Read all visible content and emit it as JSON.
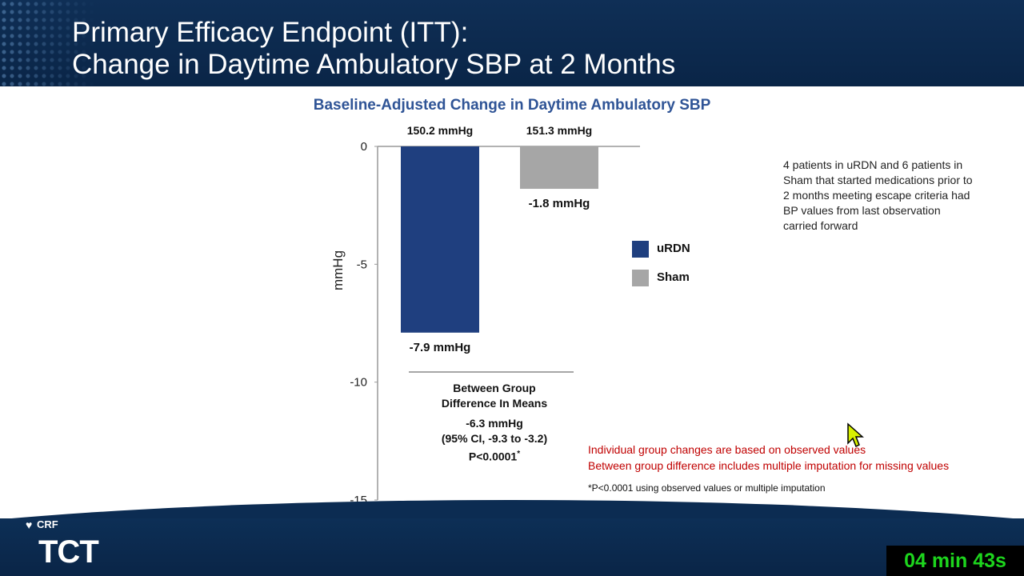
{
  "slide": {
    "title_line1": "Primary Efficacy Endpoint (ITT):",
    "title_line2": "Change in Daytime Ambulatory SBP at 2 Months",
    "timer": "04 min 43s",
    "logo": {
      "brand": "CRF",
      "mark": "TCT"
    }
  },
  "chart_data": {
    "type": "bar",
    "title": "Baseline-Adjusted Change in Daytime Ambulatory SBP",
    "ylabel": "mmHg",
    "xlabel": "",
    "ylim": [
      -15,
      0
    ],
    "yticks": [
      0,
      -5,
      -10,
      -15
    ],
    "ytick_labels": [
      "0",
      "-5",
      "-10",
      "-15"
    ],
    "grid": false,
    "legend_position": "right",
    "categories": [
      "uRDN",
      "Sham"
    ],
    "values": [
      -7.9,
      -1.8
    ],
    "colors": [
      "#1f3f7f",
      "#a6a6a6"
    ],
    "baseline_labels": [
      "150.2 mmHg",
      "151.3 mmHg"
    ],
    "value_labels": [
      "-7.9 mmHg",
      "-1.8 mmHg"
    ],
    "legend": [
      {
        "name": "uRDN",
        "color": "#1f3f7f"
      },
      {
        "name": "Sham",
        "color": "#a6a6a6"
      }
    ],
    "difference": {
      "heading_line1": "Between Group",
      "heading_line2": "Difference In Means",
      "value": "-6.3 mmHg",
      "ci": "(95% CI,  -9.3 to -3.2)",
      "p": "P<0.0001",
      "p_mark": "*"
    }
  },
  "notes": {
    "escape": "4 patients in uRDN and 6 patients in Sham that started medications prior to 2 months meeting escape criteria had BP values from last observation carried forward",
    "red_line1": "Individual group changes are based on observed values",
    "red_line2": "Between group difference includes multiple imputation for missing values",
    "footnote": "*P<0.0001 using observed values or multiple imputation"
  }
}
